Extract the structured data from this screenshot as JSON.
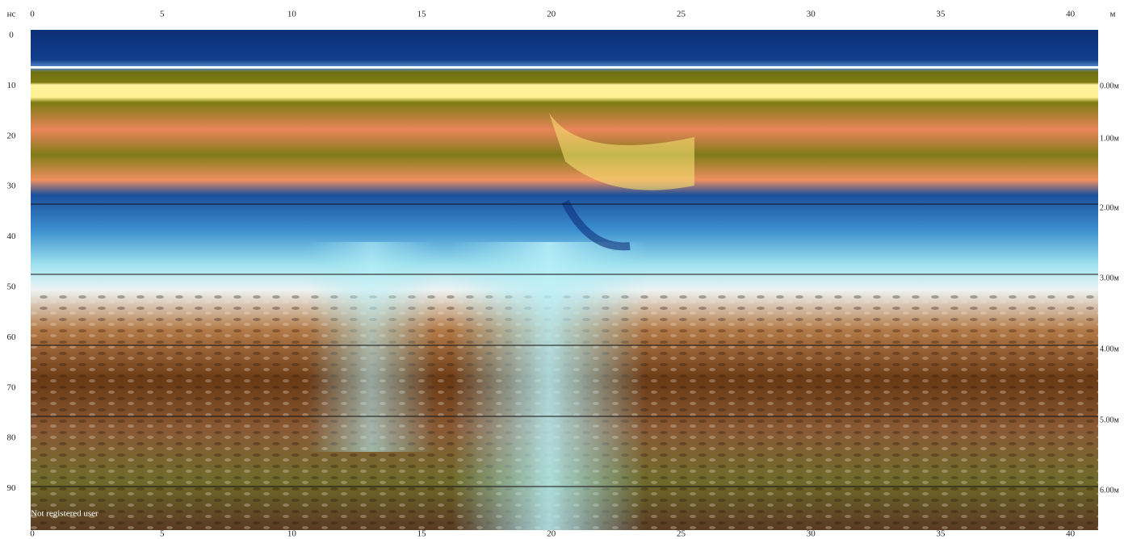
{
  "top_axis": {
    "unit": "м",
    "ticks": [
      "0",
      "5",
      "10",
      "15",
      "20",
      "25",
      "30",
      "35",
      "40"
    ]
  },
  "bottom_axis": {
    "ticks": [
      "0",
      "5",
      "10",
      "15",
      "20",
      "25",
      "30",
      "35",
      "40"
    ]
  },
  "left_axis": {
    "unit": "нс",
    "ticks": [
      "0",
      "10",
      "20",
      "30",
      "40",
      "50",
      "60",
      "70",
      "80",
      "90"
    ]
  },
  "depth_labels": [
    "0.00м",
    "1.00м",
    "2.00м",
    "3.00м",
    "4.00м",
    "5.00м",
    "6.00м"
  ],
  "watermark": "Not registered user"
}
